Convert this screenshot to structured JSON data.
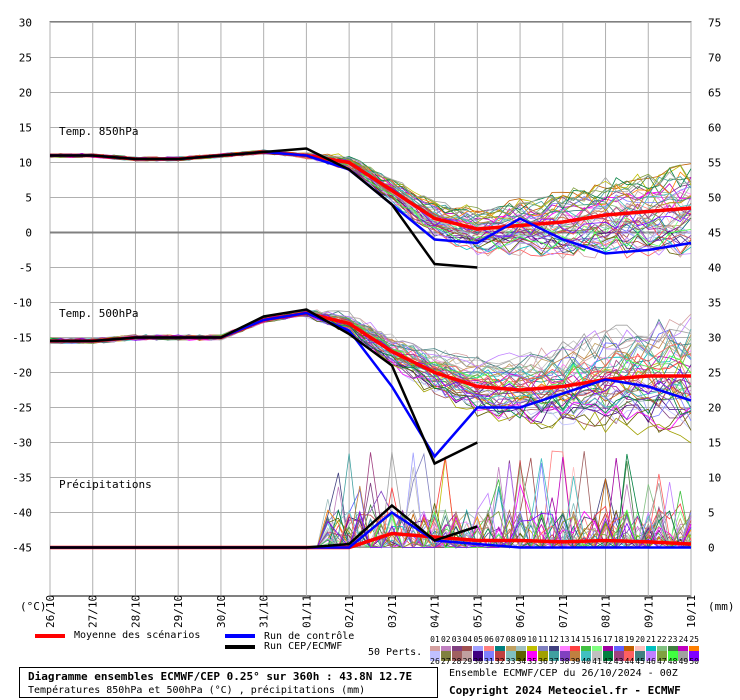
{
  "chart_data": {
    "type": "line",
    "panels": [
      "Temp. 850hPa",
      "Temp. 500hPa",
      "Précipitations"
    ],
    "x": [
      "26/10",
      "27/10",
      "28/10",
      "29/10",
      "30/10",
      "31/10",
      "01/11",
      "02/11",
      "03/11",
      "04/11",
      "05/11",
      "06/11",
      "07/11",
      "08/11",
      "09/11",
      "10/11"
    ],
    "y_left_ticks": [
      30,
      25,
      20,
      15,
      10,
      5,
      0,
      -5,
      -10,
      -15,
      -20,
      -25,
      -30,
      -35,
      -40,
      -45
    ],
    "y_right_ticks": [
      75,
      70,
      65,
      60,
      55,
      50,
      45,
      40,
      35,
      30,
      25,
      20,
      15,
      10,
      5,
      0
    ],
    "ylabel_left": "(°C)",
    "ylabel_right": "(mm)",
    "series": [
      {
        "name": "Moyenne des scénarios",
        "color": "#ff0000",
        "t850": [
          11,
          11,
          10.5,
          10.5,
          11,
          11.5,
          11,
          10,
          6,
          2,
          0.5,
          1,
          1.5,
          2.5,
          3,
          3.5
        ],
        "t500": [
          -15.5,
          -15.5,
          -15,
          -15,
          -15,
          -12.5,
          -11.5,
          -13,
          -17,
          -20,
          -22,
          -22.5,
          -22,
          -21,
          -20.5,
          -20.5
        ],
        "precip": [
          0,
          0,
          0,
          0,
          0,
          0,
          0,
          0,
          2,
          1.5,
          1,
          1,
          0.8,
          1,
          0.8,
          0.5
        ]
      },
      {
        "name": "Run de contrôle",
        "color": "#0000ff",
        "t850": [
          11,
          11,
          10.5,
          10.5,
          11,
          11.5,
          11,
          9,
          4,
          -1,
          -1.5,
          2,
          -1,
          -3,
          -2.5,
          -1.5
        ],
        "t500": [
          -15.5,
          -15.5,
          -15,
          -15,
          -15,
          -12.5,
          -11.5,
          -14,
          -22,
          -32,
          -25,
          -25,
          -23,
          -21,
          -22,
          -24
        ],
        "precip": [
          0,
          0,
          0,
          0,
          0,
          0,
          0,
          0,
          5,
          1,
          0.5,
          0,
          0,
          0,
          0,
          0
        ]
      },
      {
        "name": "Run CEP/ECMWF",
        "color": "#000000",
        "t850": [
          11,
          11,
          10.5,
          10.5,
          11,
          11.5,
          12,
          9,
          4,
          -4.5,
          -5
        ],
        "t500": [
          -15.5,
          -15.5,
          -15,
          -15,
          -15,
          -12,
          -11,
          -14.5,
          -19,
          -33,
          -30
        ],
        "precip": [
          0,
          0,
          0,
          0,
          0,
          0,
          0,
          0.5,
          6,
          1,
          3
        ]
      }
    ],
    "members": 50,
    "legend_placement": "bottom",
    "grid": true
  },
  "legend": {
    "mean": "Moyenne des scénarios",
    "control": "Run de contrôle",
    "ecmwf": "Run CEP/ECMWF",
    "perts": "50 Perts.",
    "row1": [
      "01",
      "02",
      "03",
      "04",
      "05",
      "06",
      "07",
      "08",
      "09",
      "10",
      "11",
      "12",
      "13",
      "14",
      "15",
      "16",
      "17",
      "18",
      "19",
      "20",
      "21",
      "22",
      "23",
      "24",
      "25"
    ],
    "row2": [
      "26",
      "27",
      "28",
      "29",
      "30",
      "31",
      "32",
      "33",
      "34",
      "35",
      "36",
      "37",
      "38",
      "39",
      "40",
      "41",
      "42",
      "43",
      "44",
      "45",
      "46",
      "47",
      "48",
      "49",
      "50"
    ],
    "colors1": [
      "#d4a0a0",
      "#c080c0",
      "#804080",
      "#a05050",
      "#a0a0ff",
      "#ff8080",
      "#008080",
      "#c0a060",
      "#a0c0c0",
      "#c0c000",
      "#8080c0",
      "#404080",
      "#ff80ff",
      "#ff4040",
      "#40c040",
      "#80ff80",
      "#a000a0",
      "#6060ff",
      "#c06000",
      "#ffc0c0",
      "#00c0c0",
      "#80c080",
      "#408040",
      "#c000c0",
      "#ff8000"
    ],
    "colors2": [
      "#c0c0ff",
      "#808040",
      "#a06060",
      "#c0a0a0",
      "#400080",
      "#8080ff",
      "#c04040",
      "#80c0c0",
      "#606000",
      "#ff00ff",
      "#a0a000",
      "#40a0a0",
      "#8040c0",
      "#c08040",
      "#40c0c0",
      "#c0c0c0",
      "#008040",
      "#a04080",
      "#ff6060",
      "#408080",
      "#c080ff",
      "#80a040",
      "#40ff40",
      "#a0a0a0",
      "#8000ff"
    ]
  },
  "title_box": {
    "line1": "Diagramme ensembles ECMWF/CEP 0.25° sur 360h : 43.8N 12.7E",
    "line2": "Températures 850hPa et 500hPa (°C) , précipitations (mm)"
  },
  "info": {
    "line1": "Ensemble ECMWF/CEP du 26/10/2024 - 00Z",
    "line2": "Copyright 2024 Meteociel.fr - ECMWF"
  }
}
